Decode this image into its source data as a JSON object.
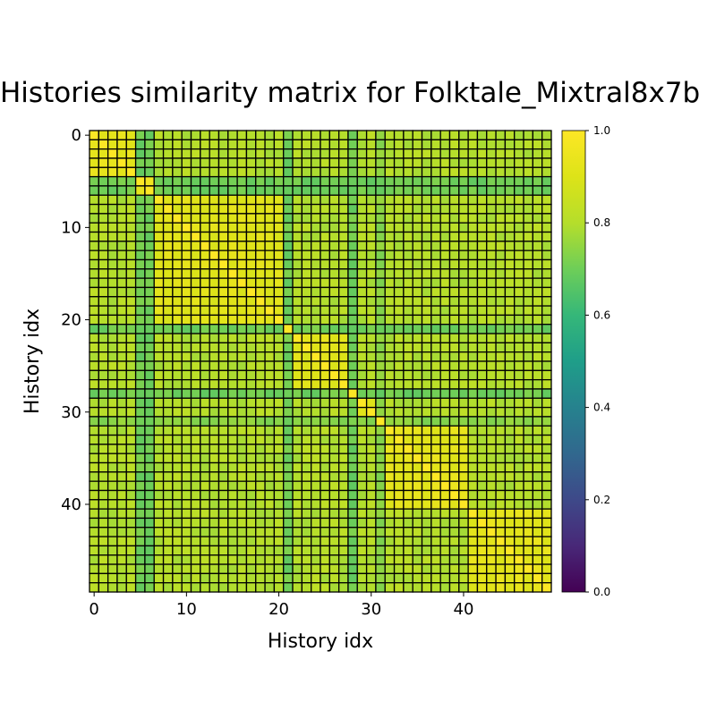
{
  "chart_data": {
    "type": "heatmap",
    "title": "Histories similarity matrix for Folktale_Mixtral8x7b",
    "xlabel": "History idx",
    "ylabel": "History idx",
    "n": 50,
    "x_ticks": [
      0,
      10,
      20,
      30,
      40
    ],
    "y_ticks": [
      0,
      10,
      20,
      30,
      40
    ],
    "colorbar": {
      "range": [
        0.0,
        1.0
      ],
      "ticks": [
        "0.0",
        "0.2",
        "0.4",
        "0.6",
        "0.8",
        "1.0"
      ],
      "colormap": "viridis"
    },
    "grid": true,
    "diagonal_value": 1.0,
    "blocks": [
      {
        "range": [
          0,
          4
        ],
        "within": 0.93
      },
      {
        "range": [
          5,
          6
        ],
        "within": 0.95
      },
      {
        "range": [
          7,
          20
        ],
        "within": 0.91
      },
      {
        "range": [
          22,
          27
        ],
        "within": 0.91
      },
      {
        "range": [
          29,
          30
        ],
        "within": 0.92
      },
      {
        "range": [
          32,
          40
        ],
        "within": 0.92
      },
      {
        "range": [
          41,
          49
        ],
        "within": 0.92
      }
    ],
    "background_similarity": 0.8,
    "low_similarity_rows": [
      {
        "index": 5,
        "value": 0.7
      },
      {
        "index": 6,
        "value": 0.7
      },
      {
        "index": 21,
        "value": 0.7
      },
      {
        "index": 28,
        "value": 0.7
      },
      {
        "index": 31,
        "value": 0.74
      }
    ]
  }
}
